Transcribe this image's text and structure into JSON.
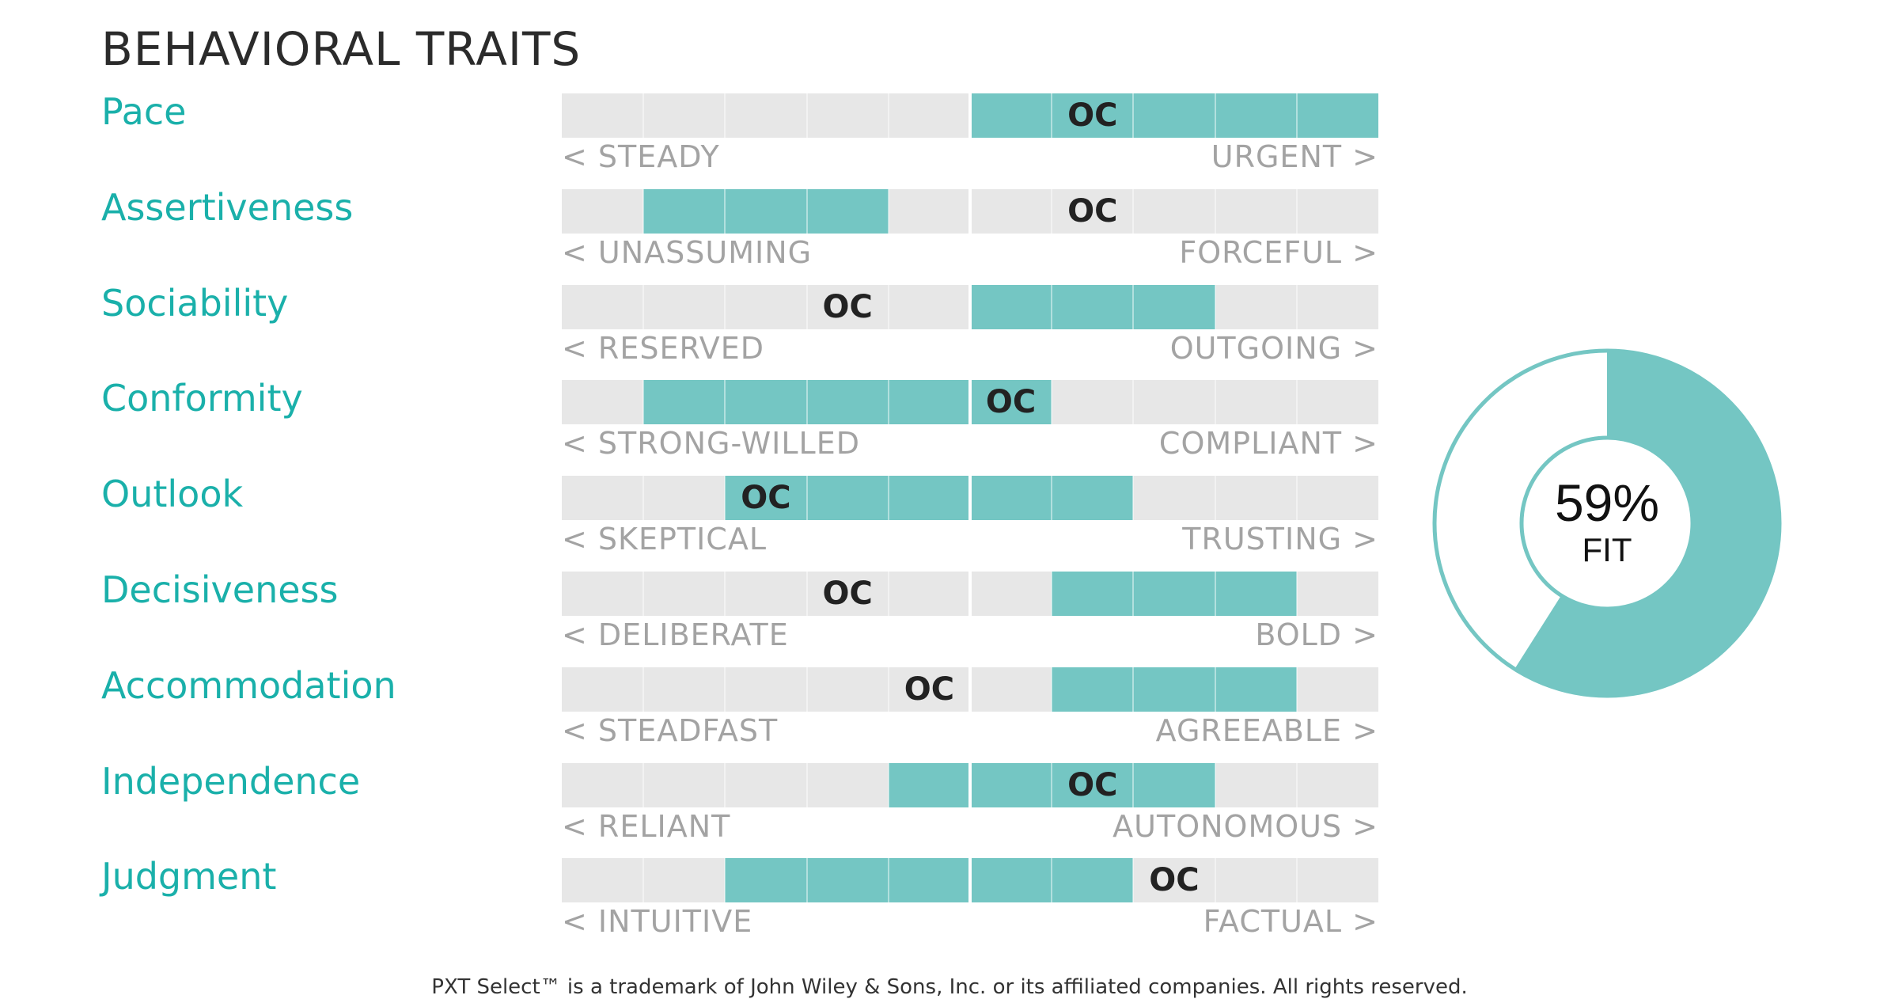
{
  "title": "BEHAVIORAL TRAITS",
  "footer": "PXT Select™ is a trademark of John Wiley & Sons, Inc. or its affiliated companies. All rights reserved.",
  "colors": {
    "accent": "#1ab0aa",
    "fill": "#74c6c3",
    "track": "#e7e7e7",
    "pole": "#a3a3a3",
    "marker": "#222222"
  },
  "chart_data": [
    {
      "type": "bar",
      "title": "BEHAVIORAL TRAITS",
      "scale": {
        "min": 1,
        "max": 10
      },
      "traits": [
        {
          "name": "Pace",
          "left_pole": "< STEADY",
          "right_pole": "URGENT >",
          "range": [
            6,
            10
          ],
          "marker": 7,
          "marker_label": "OC"
        },
        {
          "name": "Assertiveness",
          "left_pole": "< UNASSUMING",
          "right_pole": "FORCEFUL >",
          "range": [
            2,
            4
          ],
          "marker": 7,
          "marker_label": "OC"
        },
        {
          "name": "Sociability",
          "left_pole": "< RESERVED",
          "right_pole": "OUTGOING >",
          "range": [
            6,
            8
          ],
          "marker": 4,
          "marker_label": "OC"
        },
        {
          "name": "Conformity",
          "left_pole": "< STRONG-WILLED",
          "right_pole": "COMPLIANT >",
          "range": [
            2,
            6
          ],
          "marker": 6,
          "marker_label": "OC"
        },
        {
          "name": "Outlook",
          "left_pole": "< SKEPTICAL",
          "right_pole": "TRUSTING >",
          "range": [
            3,
            7
          ],
          "marker": 3,
          "marker_label": "OC"
        },
        {
          "name": "Decisiveness",
          "left_pole": "< DELIBERATE",
          "right_pole": "BOLD >",
          "range": [
            7,
            9
          ],
          "marker": 4,
          "marker_label": "OC"
        },
        {
          "name": "Accommodation",
          "left_pole": "< STEADFAST",
          "right_pole": "AGREEABLE >",
          "range": [
            7,
            9
          ],
          "marker": 5,
          "marker_label": "OC"
        },
        {
          "name": "Independence",
          "left_pole": "< RELIANT",
          "right_pole": "AUTONOMOUS >",
          "range": [
            5,
            8
          ],
          "marker": 7,
          "marker_label": "OC"
        },
        {
          "name": "Judgment",
          "left_pole": "< INTUITIVE",
          "right_pole": "FACTUAL >",
          "range": [
            3,
            7
          ],
          "marker": 8,
          "marker_label": "OC"
        }
      ]
    },
    {
      "type": "pie",
      "values": [
        59,
        41
      ],
      "value_label": "59%",
      "caption": "FIT"
    }
  ]
}
